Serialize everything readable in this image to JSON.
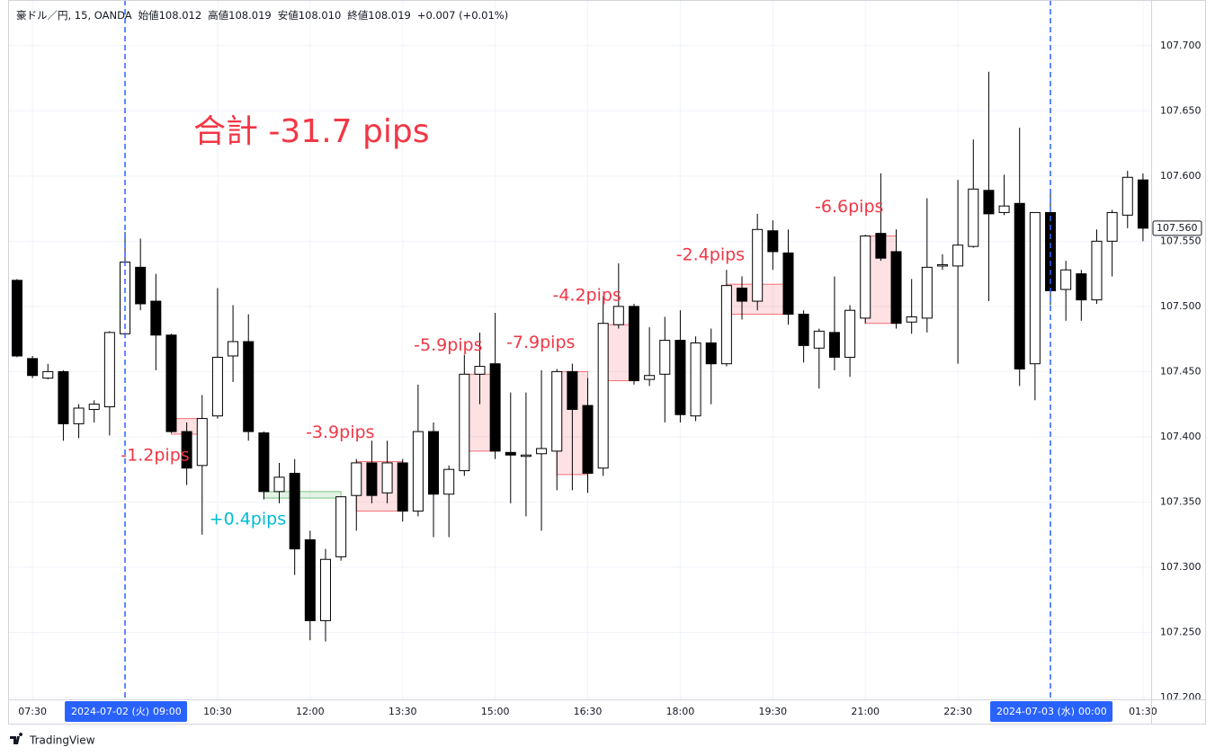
{
  "chart_data": {
    "type": "candlestick",
    "header": [
      "豪ドル／円, 15, OANDA",
      "始値108.012",
      "高値108.019",
      "安値108.010",
      "終値108.019",
      "+0.007 (+0.01%)"
    ],
    "title": "合計 -31.7 pips",
    "title_color": "#f23645",
    "branding": "TradingView",
    "categories": [
      null,
      "07:30",
      null,
      null,
      null,
      null,
      null,
      "09:00",
      null,
      null,
      null,
      null,
      null,
      "10:30",
      null,
      null,
      null,
      null,
      null,
      "12:00",
      null,
      null,
      null,
      null,
      null,
      "13:30",
      null,
      null,
      null,
      null,
      null,
      "15:00",
      null,
      null,
      null,
      null,
      null,
      "16:30",
      null,
      null,
      null,
      null,
      null,
      "18:00",
      null,
      null,
      null,
      null,
      null,
      "19:30",
      null,
      null,
      null,
      null,
      null,
      "21:00",
      null,
      null,
      null,
      null,
      null,
      "22:30",
      null,
      null,
      null,
      null,
      null,
      "00:00",
      null,
      null,
      null,
      null,
      null,
      "01:30"
    ],
    "open": [
      107.52,
      107.46,
      107.445,
      107.45,
      107.41,
      107.421,
      107.423,
      107.479,
      107.53,
      107.504,
      107.478,
      107.404,
      107.378,
      107.416,
      107.462,
      107.473,
      107.403,
      107.358,
      107.372,
      107.321,
      107.259,
      107.308,
      107.355,
      107.38,
      107.357,
      107.38,
      107.343,
      107.404,
      107.356,
      107.374,
      107.448,
      107.456,
      107.388,
      107.385,
      107.387,
      107.389,
      107.45,
      107.424,
      107.376,
      107.486,
      107.5,
      107.444,
      107.448,
      107.474,
      107.416,
      107.472,
      107.456,
      107.514,
      107.504,
      107.558,
      107.541,
      107.494,
      107.468,
      107.48,
      107.461,
      107.491,
      107.556,
      107.542,
      107.488,
      107.491,
      107.531,
      107.531,
      107.546,
      107.589,
      107.572,
      107.579,
      107.456,
      107.572,
      107.513,
      107.525,
      107.505,
      107.55,
      107.57,
      107.597
    ],
    "high": [
      107.521,
      107.462,
      107.456,
      107.451,
      107.425,
      107.428,
      107.481,
      107.557,
      107.552,
      107.525,
      107.479,
      107.411,
      107.432,
      107.514,
      107.501,
      107.494,
      107.404,
      107.38,
      107.383,
      107.328,
      107.314,
      107.354,
      107.383,
      107.397,
      107.397,
      107.383,
      107.44,
      107.411,
      107.378,
      107.463,
      107.48,
      107.495,
      107.434,
      107.434,
      107.451,
      107.452,
      107.456,
      107.445,
      107.508,
      107.533,
      107.502,
      107.484,
      107.492,
      107.497,
      107.477,
      107.483,
      107.528,
      107.523,
      107.571,
      107.566,
      107.559,
      107.497,
      107.483,
      107.523,
      107.501,
      107.555,
      107.602,
      107.559,
      107.521,
      107.583,
      107.54,
      107.597,
      107.628,
      107.68,
      107.601,
      107.637,
      107.572,
      107.589,
      107.535,
      107.528,
      107.559,
      107.574,
      107.604,
      107.602
    ],
    "low": [
      107.461,
      107.445,
      107.444,
      107.397,
      107.399,
      107.411,
      107.401,
      107.478,
      107.497,
      107.451,
      107.403,
      107.363,
      107.325,
      107.414,
      107.442,
      107.397,
      107.352,
      107.349,
      107.294,
      107.244,
      107.243,
      107.305,
      107.328,
      107.349,
      107.349,
      107.335,
      107.339,
      107.323,
      107.323,
      107.37,
      107.425,
      107.383,
      107.349,
      107.339,
      107.328,
      107.359,
      107.359,
      107.357,
      107.37,
      107.483,
      107.44,
      107.439,
      107.411,
      107.411,
      107.412,
      107.425,
      107.454,
      107.49,
      107.497,
      107.528,
      107.486,
      107.457,
      107.437,
      107.451,
      107.446,
      107.487,
      107.535,
      107.483,
      107.479,
      107.48,
      107.528,
      107.456,
      107.545,
      107.504,
      107.57,
      107.439,
      107.428,
      107.501,
      107.489,
      107.489,
      107.502,
      107.523,
      107.56,
      107.55
    ],
    "close": [
      107.462,
      107.447,
      107.45,
      107.41,
      107.422,
      107.425,
      107.48,
      107.534,
      107.502,
      107.478,
      107.404,
      107.376,
      107.414,
      107.461,
      107.473,
      107.404,
      107.358,
      107.369,
      107.314,
      107.259,
      107.306,
      107.354,
      107.38,
      107.355,
      107.38,
      107.343,
      107.404,
      107.356,
      107.375,
      107.448,
      107.454,
      107.389,
      107.386,
      107.386,
      107.391,
      107.45,
      107.421,
      107.372,
      107.487,
      107.5,
      107.443,
      107.447,
      107.474,
      107.417,
      107.472,
      107.456,
      107.516,
      107.504,
      107.559,
      107.542,
      107.494,
      107.47,
      107.481,
      107.461,
      107.497,
      107.554,
      107.537,
      107.487,
      107.492,
      107.53,
      107.532,
      107.547,
      107.59,
      107.571,
      107.577,
      107.452,
      107.572,
      107.512,
      107.528,
      107.505,
      107.55,
      107.572,
      107.599,
      107.56
    ],
    "up_color": "#ffffff",
    "down_color": "#000000",
    "ylim": [
      107.2,
      107.735
    ],
    "yticks": [
      {
        "value": 107.2,
        "label": "107.200"
      },
      {
        "value": 107.25,
        "label": "107.250"
      },
      {
        "value": 107.3,
        "label": "107.300"
      },
      {
        "value": 107.35,
        "label": "107.350"
      },
      {
        "value": 107.4,
        "label": "107.400"
      },
      {
        "value": 107.45,
        "label": "107.450"
      },
      {
        "value": 107.5,
        "label": "107.500"
      },
      {
        "value": 107.55,
        "label": "107.550"
      },
      {
        "value": 107.6,
        "label": "107.600"
      },
      {
        "value": 107.65,
        "label": "107.650"
      },
      {
        "value": 107.7,
        "label": "107.700"
      }
    ],
    "grid": true,
    "last_price": {
      "value": 107.56,
      "label": "107.560"
    },
    "date_markers": [
      {
        "time": "09:00",
        "date": "2024-07-02 (火)"
      },
      {
        "time": "00:00",
        "date": "2024-07-03 (水)"
      }
    ],
    "marker_color": "#2962ff",
    "trades": [
      {
        "label": "-1.2pips",
        "start": 10,
        "end": 12,
        "top": 107.414,
        "bottom": 107.402,
        "color": "#f23645",
        "label_color": "#f23645",
        "label_position": "below"
      },
      {
        "label": "+0.4pips",
        "start": 16,
        "end": 21,
        "top": 107.358,
        "bottom": 107.353,
        "color": "#4caf50",
        "label_color": "#00bcd4",
        "label_position": "below"
      },
      {
        "label": "-3.9pips",
        "start": 22,
        "end": 25,
        "top": 107.381,
        "bottom": 107.343,
        "color": "#f23645",
        "label_color": "#f23645",
        "label_position": "above"
      },
      {
        "label": "-5.9pips",
        "start": 29,
        "end": 31,
        "top": 107.448,
        "bottom": 107.389,
        "color": "#f23645",
        "label_color": "#f23645",
        "label_position": "above"
      },
      {
        "label": "-7.9pips",
        "start": 35,
        "end": 37,
        "top": 107.45,
        "bottom": 107.371,
        "color": "#f23645",
        "label_color": "#f23645",
        "label_position": "above"
      },
      {
        "label": "-4.2pips",
        "start": 38,
        "end": 40,
        "top": 107.486,
        "bottom": 107.443,
        "color": "#f23645",
        "label_color": "#f23645",
        "label_position": "above"
      },
      {
        "label": "-2.4pips",
        "start": 46,
        "end": 50,
        "top": 107.517,
        "bottom": 107.494,
        "color": "#f23645",
        "label_color": "#f23645",
        "label_position": "above"
      },
      {
        "label": "-6.6pips",
        "start": 55,
        "end": 57,
        "top": 107.554,
        "bottom": 107.487,
        "color": "#f23645",
        "label_color": "#f23645",
        "label_position": "above"
      }
    ]
  }
}
